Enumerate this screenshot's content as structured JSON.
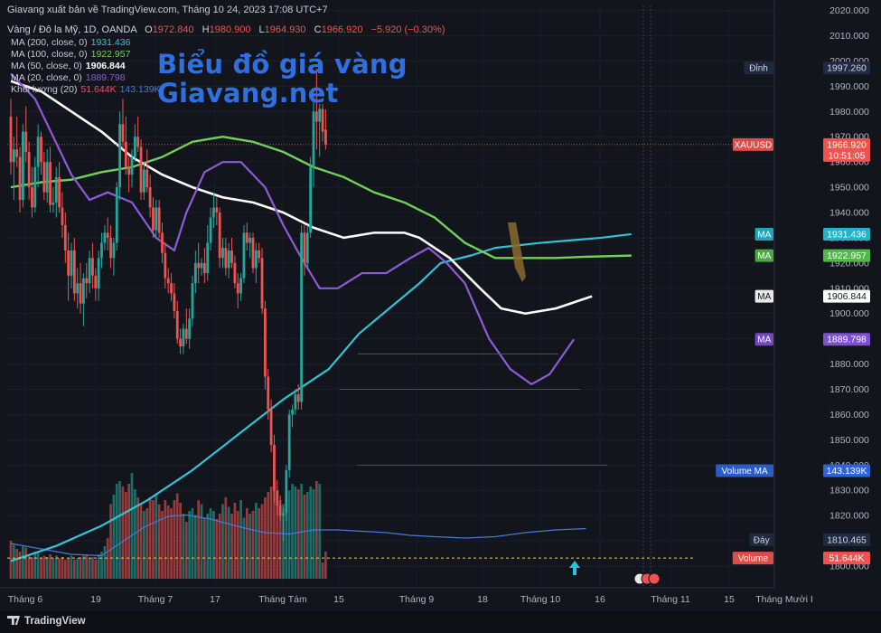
{
  "header": {
    "publisher": "Giavang xuất bản về TradingView.com, Tháng 10 24, 2023 17:08 UTC+7",
    "symbol": "Vàng / Đô la Mỹ, 1D, OANDA",
    "ohlc": {
      "o_label": "O",
      "o": "1972.840",
      "h_label": "H",
      "h": "1980.900",
      "l_label": "L",
      "l": "1964.930",
      "c_label": "C",
      "c": "1966.920",
      "change": "−5.920 (−0.30%)"
    }
  },
  "legend": [
    {
      "label": "MA (200, close, 0)",
      "value": "1931.436",
      "color": "#35c2d6"
    },
    {
      "label": "MA (100, close, 0)",
      "value": "1922.957",
      "color": "#6fd15a"
    },
    {
      "label": "MA (50, close, 0)",
      "value": "1906.844",
      "color": "#ffffff"
    },
    {
      "label": "MA (20, close, 0)",
      "value": "1889.798",
      "color": "#8e5bd8"
    },
    {
      "label": "Khối lượng (20)",
      "value": "51.644K",
      "value2": "143.139K",
      "color": "#f0506e",
      "color2": "#4a78d8"
    }
  ],
  "brand": {
    "line1": "Biểu đồ giá vàng",
    "line2": "Giavang.net"
  },
  "footer": {
    "logo": "TradingView"
  },
  "colors": {
    "up": "#26a69a",
    "down": "#ef5350",
    "background": "#12151c"
  },
  "chart_data": {
    "type": "candlestick",
    "symbol": "XAUUSD",
    "timeframe": "1D",
    "ylim": [
      1795,
      2022
    ],
    "y_ticks": [
      1800,
      1810,
      1820,
      1830,
      1840,
      1850,
      1860,
      1870,
      1880,
      1890,
      1900,
      1910,
      1920,
      1930,
      1940,
      1950,
      1960,
      1970,
      1980,
      1990,
      2000,
      2010,
      2020
    ],
    "x_ticks": [
      "Tháng 6",
      "19",
      "Tháng 7",
      "17",
      "Tháng Tám",
      "15",
      "Tháng 9",
      "18",
      "Tháng 10",
      "16",
      "Tháng 11",
      "15",
      "Tháng Mười I"
    ],
    "candles": [
      {
        "o": 1978,
        "h": 1985,
        "l": 1955,
        "c": 1960
      },
      {
        "o": 1960,
        "h": 1970,
        "l": 1945,
        "c": 1965
      },
      {
        "o": 1965,
        "h": 1978,
        "l": 1958,
        "c": 1962
      },
      {
        "o": 1962,
        "h": 1966,
        "l": 1940,
        "c": 1945
      },
      {
        "o": 1945,
        "h": 1975,
        "l": 1942,
        "c": 1972
      },
      {
        "o": 1972,
        "h": 1982,
        "l": 1960,
        "c": 1964
      },
      {
        "o": 1964,
        "h": 1968,
        "l": 1945,
        "c": 1950
      },
      {
        "o": 1950,
        "h": 1958,
        "l": 1938,
        "c": 1942
      },
      {
        "o": 1942,
        "h": 1962,
        "l": 1940,
        "c": 1958
      },
      {
        "o": 1958,
        "h": 1975,
        "l": 1950,
        "c": 1970
      },
      {
        "o": 1970,
        "h": 1972,
        "l": 1955,
        "c": 1960
      },
      {
        "o": 1960,
        "h": 1964,
        "l": 1945,
        "c": 1948
      },
      {
        "o": 1948,
        "h": 1965,
        "l": 1944,
        "c": 1960
      },
      {
        "o": 1960,
        "h": 1966,
        "l": 1940,
        "c": 1943
      },
      {
        "o": 1943,
        "h": 1950,
        "l": 1940,
        "c": 1944
      },
      {
        "o": 1944,
        "h": 1958,
        "l": 1938,
        "c": 1954
      },
      {
        "o": 1954,
        "h": 1960,
        "l": 1940,
        "c": 1942
      },
      {
        "o": 1942,
        "h": 1948,
        "l": 1930,
        "c": 1935
      },
      {
        "o": 1935,
        "h": 1940,
        "l": 1920,
        "c": 1925
      },
      {
        "o": 1925,
        "h": 1932,
        "l": 1905,
        "c": 1915
      },
      {
        "o": 1915,
        "h": 1928,
        "l": 1910,
        "c": 1925
      },
      {
        "o": 1925,
        "h": 1930,
        "l": 1905,
        "c": 1908
      },
      {
        "o": 1908,
        "h": 1918,
        "l": 1902,
        "c": 1912
      },
      {
        "o": 1912,
        "h": 1920,
        "l": 1900,
        "c": 1904
      },
      {
        "o": 1904,
        "h": 1916,
        "l": 1895,
        "c": 1914
      },
      {
        "o": 1914,
        "h": 1920,
        "l": 1906,
        "c": 1912
      },
      {
        "o": 1912,
        "h": 1925,
        "l": 1908,
        "c": 1922
      },
      {
        "o": 1922,
        "h": 1928,
        "l": 1910,
        "c": 1915
      },
      {
        "o": 1915,
        "h": 1918,
        "l": 1905,
        "c": 1910
      },
      {
        "o": 1910,
        "h": 1925,
        "l": 1905,
        "c": 1922
      },
      {
        "o": 1922,
        "h": 1932,
        "l": 1918,
        "c": 1928
      },
      {
        "o": 1928,
        "h": 1935,
        "l": 1925,
        "c": 1932
      },
      {
        "o": 1932,
        "h": 1938,
        "l": 1925,
        "c": 1930
      },
      {
        "o": 1930,
        "h": 1935,
        "l": 1918,
        "c": 1922
      },
      {
        "o": 1922,
        "h": 1930,
        "l": 1915,
        "c": 1928
      },
      {
        "o": 1928,
        "h": 1952,
        "l": 1925,
        "c": 1950
      },
      {
        "o": 1950,
        "h": 1980,
        "l": 1945,
        "c": 1975
      },
      {
        "o": 1975,
        "h": 1985,
        "l": 1965,
        "c": 1968
      },
      {
        "o": 1968,
        "h": 1978,
        "l": 1955,
        "c": 1958
      },
      {
        "o": 1958,
        "h": 1962,
        "l": 1948,
        "c": 1955
      },
      {
        "o": 1955,
        "h": 1965,
        "l": 1950,
        "c": 1962
      },
      {
        "o": 1962,
        "h": 1975,
        "l": 1960,
        "c": 1970
      },
      {
        "o": 1970,
        "h": 1978,
        "l": 1964,
        "c": 1966
      },
      {
        "o": 1966,
        "h": 1969,
        "l": 1945,
        "c": 1948
      },
      {
        "o": 1948,
        "h": 1960,
        "l": 1945,
        "c": 1957
      },
      {
        "o": 1957,
        "h": 1965,
        "l": 1948,
        "c": 1950
      },
      {
        "o": 1950,
        "h": 1955,
        "l": 1938,
        "c": 1942
      },
      {
        "o": 1942,
        "h": 1946,
        "l": 1930,
        "c": 1933
      },
      {
        "o": 1933,
        "h": 1945,
        "l": 1930,
        "c": 1942
      },
      {
        "o": 1942,
        "h": 1945,
        "l": 1930,
        "c": 1932
      },
      {
        "o": 1932,
        "h": 1936,
        "l": 1920,
        "c": 1924
      },
      {
        "o": 1924,
        "h": 1928,
        "l": 1910,
        "c": 1914
      },
      {
        "o": 1914,
        "h": 1918,
        "l": 1908,
        "c": 1912
      },
      {
        "o": 1912,
        "h": 1916,
        "l": 1905,
        "c": 1908
      },
      {
        "o": 1908,
        "h": 1912,
        "l": 1898,
        "c": 1901
      },
      {
        "o": 1901,
        "h": 1905,
        "l": 1888,
        "c": 1890
      },
      {
        "o": 1890,
        "h": 1894,
        "l": 1884,
        "c": 1887
      },
      {
        "o": 1887,
        "h": 1896,
        "l": 1884,
        "c": 1894
      },
      {
        "o": 1894,
        "h": 1902,
        "l": 1888,
        "c": 1890
      },
      {
        "o": 1890,
        "h": 1902,
        "l": 1886,
        "c": 1898
      },
      {
        "o": 1898,
        "h": 1915,
        "l": 1895,
        "c": 1912
      },
      {
        "o": 1912,
        "h": 1925,
        "l": 1908,
        "c": 1920
      },
      {
        "o": 1920,
        "h": 1928,
        "l": 1912,
        "c": 1918
      },
      {
        "o": 1918,
        "h": 1922,
        "l": 1915,
        "c": 1920
      },
      {
        "o": 1920,
        "h": 1926,
        "l": 1912,
        "c": 1916
      },
      {
        "o": 1916,
        "h": 1935,
        "l": 1913,
        "c": 1928
      },
      {
        "o": 1928,
        "h": 1942,
        "l": 1925,
        "c": 1938
      },
      {
        "o": 1938,
        "h": 1948,
        "l": 1934,
        "c": 1942
      },
      {
        "o": 1942,
        "h": 1946,
        "l": 1935,
        "c": 1940
      },
      {
        "o": 1940,
        "h": 1942,
        "l": 1918,
        "c": 1922
      },
      {
        "o": 1922,
        "h": 1930,
        "l": 1918,
        "c": 1926
      },
      {
        "o": 1926,
        "h": 1930,
        "l": 1915,
        "c": 1918
      },
      {
        "o": 1918,
        "h": 1928,
        "l": 1914,
        "c": 1925
      },
      {
        "o": 1925,
        "h": 1930,
        "l": 1918,
        "c": 1920
      },
      {
        "o": 1920,
        "h": 1923,
        "l": 1910,
        "c": 1912
      },
      {
        "o": 1912,
        "h": 1916,
        "l": 1902,
        "c": 1908
      },
      {
        "o": 1908,
        "h": 1916,
        "l": 1905,
        "c": 1914
      },
      {
        "o": 1914,
        "h": 1935,
        "l": 1912,
        "c": 1932
      },
      {
        "o": 1932,
        "h": 1936,
        "l": 1925,
        "c": 1928
      },
      {
        "o": 1928,
        "h": 1932,
        "l": 1922,
        "c": 1930
      },
      {
        "o": 1930,
        "h": 1932,
        "l": 1916,
        "c": 1918
      },
      {
        "o": 1918,
        "h": 1928,
        "l": 1912,
        "c": 1925
      },
      {
        "o": 1925,
        "h": 1928,
        "l": 1920,
        "c": 1922
      },
      {
        "o": 1922,
        "h": 1926,
        "l": 1900,
        "c": 1902
      },
      {
        "o": 1902,
        "h": 1905,
        "l": 1870,
        "c": 1875
      },
      {
        "o": 1875,
        "h": 1878,
        "l": 1858,
        "c": 1862
      },
      {
        "o": 1862,
        "h": 1866,
        "l": 1845,
        "c": 1848
      },
      {
        "o": 1848,
        "h": 1852,
        "l": 1825,
        "c": 1830
      },
      {
        "o": 1830,
        "h": 1834,
        "l": 1820,
        "c": 1824
      },
      {
        "o": 1824,
        "h": 1828,
        "l": 1818,
        "c": 1820
      },
      {
        "o": 1820,
        "h": 1823,
        "l": 1810,
        "c": 1821
      },
      {
        "o": 1821,
        "h": 1840,
        "l": 1818,
        "c": 1838
      },
      {
        "o": 1838,
        "h": 1862,
        "l": 1835,
        "c": 1860
      },
      {
        "o": 1860,
        "h": 1864,
        "l": 1855,
        "c": 1862
      },
      {
        "o": 1862,
        "h": 1870,
        "l": 1860,
        "c": 1868
      },
      {
        "o": 1868,
        "h": 1872,
        "l": 1862,
        "c": 1865
      },
      {
        "o": 1865,
        "h": 1935,
        "l": 1862,
        "c": 1932
      },
      {
        "o": 1932,
        "h": 1935,
        "l": 1915,
        "c": 1920
      },
      {
        "o": 1920,
        "h": 1935,
        "l": 1918,
        "c": 1932
      },
      {
        "o": 1932,
        "h": 1962,
        "l": 1930,
        "c": 1958
      },
      {
        "o": 1958,
        "h": 1985,
        "l": 1950,
        "c": 1980
      },
      {
        "o": 1980,
        "h": 1997,
        "l": 1965,
        "c": 1976
      },
      {
        "o": 1976,
        "h": 1983,
        "l": 1962,
        "c": 1981
      },
      {
        "o": 1981,
        "h": 1983,
        "l": 1968,
        "c": 1972
      },
      {
        "o": 1972.84,
        "h": 1980.9,
        "l": 1964.93,
        "c": 1966.92
      }
    ],
    "volume_ratio": [
      0.28,
      0.25,
      0.22,
      0.2,
      0.24,
      0.23,
      0.18,
      0.16,
      0.2,
      0.19,
      0.15,
      0.17,
      0.16,
      0.18,
      0.15,
      0.17,
      0.15,
      0.16,
      0.14,
      0.15,
      0.17,
      0.14,
      0.15,
      0.16,
      0.17,
      0.18,
      0.15,
      0.16,
      0.14,
      0.18,
      0.2,
      0.24,
      0.3,
      0.55,
      0.62,
      0.7,
      0.72,
      0.68,
      0.64,
      0.7,
      0.78,
      0.66,
      0.6,
      0.55,
      0.5,
      0.52,
      0.6,
      0.58,
      0.62,
      0.55,
      0.5,
      0.58,
      0.54,
      0.52,
      0.58,
      0.63,
      0.56,
      0.48,
      0.42,
      0.5,
      0.52,
      0.47,
      0.58,
      0.55,
      0.45,
      0.48,
      0.52,
      0.5,
      0.44,
      0.48,
      0.55,
      0.6,
      0.53,
      0.48,
      0.56,
      0.5,
      0.58,
      0.45,
      0.52,
      0.48,
      0.5,
      0.56,
      0.52,
      0.55,
      0.6,
      0.64,
      0.68,
      0.7,
      0.64,
      0.58,
      0.55,
      0.6,
      0.65,
      0.7,
      0.68,
      0.66,
      0.7,
      0.62,
      0.64,
      0.68,
      0.66,
      0.72,
      0.7,
      0.12
    ],
    "ma200": [
      [
        0,
        1802
      ],
      [
        15,
        1808
      ],
      [
        30,
        1816
      ],
      [
        45,
        1826
      ],
      [
        60,
        1838
      ],
      [
        75,
        1852
      ],
      [
        90,
        1866
      ],
      [
        105,
        1878
      ],
      [
        115,
        1892
      ],
      [
        125,
        1902
      ],
      [
        135,
        1912
      ],
      [
        142,
        1920
      ],
      [
        152,
        1923
      ],
      [
        160,
        1926
      ],
      [
        175,
        1928
      ],
      [
        185,
        1929
      ],
      [
        195,
        1930
      ],
      [
        205,
        1931.436
      ]
    ],
    "ma100": [
      [
        0,
        1950
      ],
      [
        10,
        1952
      ],
      [
        20,
        1953
      ],
      [
        30,
        1956
      ],
      [
        40,
        1958
      ],
      [
        50,
        1962
      ],
      [
        60,
        1968
      ],
      [
        70,
        1970
      ],
      [
        80,
        1968
      ],
      [
        90,
        1964
      ],
      [
        100,
        1958
      ],
      [
        110,
        1954
      ],
      [
        120,
        1948
      ],
      [
        130,
        1944
      ],
      [
        140,
        1938
      ],
      [
        150,
        1928
      ],
      [
        160,
        1922
      ],
      [
        170,
        1922
      ],
      [
        180,
        1922
      ],
      [
        190,
        1922.5
      ],
      [
        205,
        1922.957
      ]
    ],
    "ma50": [
      [
        0,
        1992
      ],
      [
        10,
        1988
      ],
      [
        20,
        1980
      ],
      [
        30,
        1972
      ],
      [
        40,
        1962
      ],
      [
        50,
        1955
      ],
      [
        60,
        1950
      ],
      [
        70,
        1946
      ],
      [
        80,
        1944
      ],
      [
        90,
        1940
      ],
      [
        100,
        1934
      ],
      [
        110,
        1930
      ],
      [
        120,
        1932
      ],
      [
        130,
        1932
      ],
      [
        135,
        1930
      ],
      [
        145,
        1922
      ],
      [
        155,
        1910
      ],
      [
        162,
        1902
      ],
      [
        170,
        1900
      ],
      [
        180,
        1902
      ],
      [
        192,
        1906.844
      ]
    ],
    "ma20": [
      [
        0,
        1995
      ],
      [
        8,
        1985
      ],
      [
        14,
        1970
      ],
      [
        20,
        1955
      ],
      [
        26,
        1945
      ],
      [
        32,
        1948
      ],
      [
        40,
        1944
      ],
      [
        48,
        1930
      ],
      [
        54,
        1925
      ],
      [
        58,
        1940
      ],
      [
        64,
        1956
      ],
      [
        70,
        1960
      ],
      [
        76,
        1960
      ],
      [
        84,
        1950
      ],
      [
        90,
        1935
      ],
      [
        96,
        1922
      ],
      [
        102,
        1910
      ],
      [
        108,
        1910
      ],
      [
        116,
        1916
      ],
      [
        124,
        1916
      ],
      [
        132,
        1922
      ],
      [
        138,
        1926
      ],
      [
        144,
        1920
      ],
      [
        150,
        1912
      ],
      [
        158,
        1890
      ],
      [
        165,
        1878
      ],
      [
        172,
        1872
      ],
      [
        178,
        1876
      ],
      [
        186,
        1889.798
      ]
    ],
    "vol_ma_curve": [
      [
        0,
        0.26
      ],
      [
        20,
        0.18
      ],
      [
        30,
        0.17
      ],
      [
        36,
        0.26
      ],
      [
        44,
        0.38
      ],
      [
        52,
        0.46
      ],
      [
        58,
        0.47
      ],
      [
        66,
        0.44
      ],
      [
        76,
        0.38
      ],
      [
        84,
        0.34
      ],
      [
        92,
        0.33
      ],
      [
        100,
        0.36
      ],
      [
        108,
        0.36
      ],
      [
        116,
        0.35
      ],
      [
        124,
        0.34
      ],
      [
        132,
        0.32
      ],
      [
        140,
        0.31
      ],
      [
        150,
        0.3
      ],
      [
        160,
        0.31
      ],
      [
        170,
        0.34
      ],
      [
        180,
        0.36
      ],
      [
        190,
        0.37
      ]
    ],
    "price_labels": [
      {
        "name": "Đỉnh",
        "value": "1997.260",
        "price": 1997.26,
        "bg": "#1f2b45",
        "fg": "#d1d4dc"
      },
      {
        "name": "XAUUSD",
        "value": "1966.920",
        "value2": "10:51:05",
        "price": 1966.92,
        "bg": "#ef5350",
        "fg": "#ffffff"
      },
      {
        "name": "MA",
        "value": "1931.436",
        "price": 1931.436,
        "bg": "#22b4c8",
        "fg": "#ffffff"
      },
      {
        "name": "MA",
        "value": "1922.957",
        "price": 1922.957,
        "bg": "#53b84a",
        "fg": "#ffffff"
      },
      {
        "name": "MA",
        "value": "1906.844",
        "price": 1906.844,
        "bg": "#ffffff",
        "fg": "#12151c"
      },
      {
        "name": "MA",
        "value": "1889.798",
        "price": 1889.798,
        "bg": "#7e4fcf",
        "fg": "#ffffff"
      },
      {
        "name": "Volume MA",
        "value": "143.139K",
        "price": 1837.8,
        "bg": "#2f63d6",
        "fg": "#ffffff"
      },
      {
        "name": "Đáy",
        "value": "1810.465",
        "price": 1810.465,
        "bg": "#1f2b45",
        "fg": "#d1d4dc"
      },
      {
        "name": "Volume",
        "value": "51.644K",
        "price": 1803.2,
        "bg": "#ef5350",
        "fg": "#ffffff"
      }
    ]
  }
}
